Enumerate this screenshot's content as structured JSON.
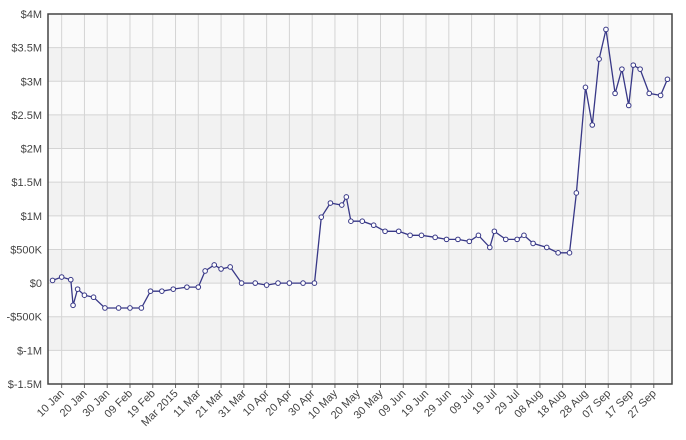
{
  "chart_data": {
    "type": "line",
    "x": [
      5,
      9,
      13,
      14,
      16,
      19,
      23,
      28,
      34,
      39,
      44,
      48,
      53,
      58,
      64,
      69,
      72,
      76,
      79,
      83,
      88,
      94,
      99,
      104,
      109,
      115,
      120,
      123,
      127,
      132,
      134,
      136,
      141,
      146,
      151,
      157,
      162,
      167,
      173,
      178,
      183,
      188,
      192,
      197,
      199,
      204,
      209,
      212,
      216,
      222,
      227,
      232,
      235,
      239,
      242,
      245,
      248,
      252,
      255,
      258,
      260,
      263,
      267,
      272,
      275
    ],
    "series": [
      {
        "color": "#383887",
        "values": [
          40000,
          90000,
          50000,
          -330000,
          -90000,
          -180000,
          -210000,
          -370000,
          -370000,
          -370000,
          -370000,
          -120000,
          -120000,
          -90000,
          -60000,
          -60000,
          180000,
          270000,
          210000,
          240000,
          0,
          0,
          -30000,
          0,
          0,
          0,
          0,
          980000,
          1190000,
          1160000,
          1280000,
          920000,
          920000,
          860000,
          770000,
          770000,
          710000,
          710000,
          680000,
          650000,
          650000,
          620000,
          710000,
          530000,
          770000,
          650000,
          650000,
          710000,
          590000,
          530000,
          450000,
          450000,
          1340000,
          2910000,
          2350000,
          3330000,
          3770000,
          2820000,
          3180000,
          2640000,
          3240000,
          3180000,
          2820000,
          2790000,
          3030000
        ]
      }
    ],
    "xlim": [
      3,
      277
    ],
    "xticks": [
      {
        "value": 9,
        "label": "10 Jan"
      },
      {
        "value": 19,
        "label": "20 Jan"
      },
      {
        "value": 29,
        "label": "30 Jan"
      },
      {
        "value": 39,
        "label": "09 Feb"
      },
      {
        "value": 49,
        "label": "19 Feb"
      },
      {
        "value": 59,
        "label": "Mar 2015"
      },
      {
        "value": 69,
        "label": "11 Mar"
      },
      {
        "value": 79,
        "label": "21 Mar"
      },
      {
        "value": 89,
        "label": "31 Mar"
      },
      {
        "value": 99,
        "label": "10 Apr"
      },
      {
        "value": 109,
        "label": "20 Apr"
      },
      {
        "value": 119,
        "label": "30 Apr"
      },
      {
        "value": 129,
        "label": "10 May"
      },
      {
        "value": 139,
        "label": "20 May"
      },
      {
        "value": 149,
        "label": "30 May"
      },
      {
        "value": 159,
        "label": "09 Jun"
      },
      {
        "value": 169,
        "label": "19 Jun"
      },
      {
        "value": 179,
        "label": "29 Jun"
      },
      {
        "value": 189,
        "label": "09 Jul"
      },
      {
        "value": 199,
        "label": "19 Jul"
      },
      {
        "value": 209,
        "label": "29 Jul"
      },
      {
        "value": 219,
        "label": "08 Aug"
      },
      {
        "value": 229,
        "label": "18 Aug"
      },
      {
        "value": 239,
        "label": "28 Aug"
      },
      {
        "value": 249,
        "label": "07 Sep"
      },
      {
        "value": 259,
        "label": "17 Sep"
      },
      {
        "value": 269,
        "label": "27 Sep"
      }
    ],
    "ylim": [
      -1500000,
      4000000
    ],
    "yticks": [
      {
        "value": -1500000,
        "label": "$-1.5M"
      },
      {
        "value": -1000000,
        "label": "$-1M"
      },
      {
        "value": -500000,
        "label": "-$500K"
      },
      {
        "value": 0,
        "label": "$0"
      },
      {
        "value": 500000,
        "label": "$500K"
      },
      {
        "value": 1000000,
        "label": "$1M"
      },
      {
        "value": 1500000,
        "label": "$1.5M"
      },
      {
        "value": 2000000,
        "label": "$2M"
      },
      {
        "value": 2500000,
        "label": "$2.5M"
      },
      {
        "value": 3000000,
        "label": "$3M"
      },
      {
        "value": 3500000,
        "label": "$3.5M"
      },
      {
        "value": 4000000,
        "label": "$4M"
      }
    ],
    "grid": true
  }
}
